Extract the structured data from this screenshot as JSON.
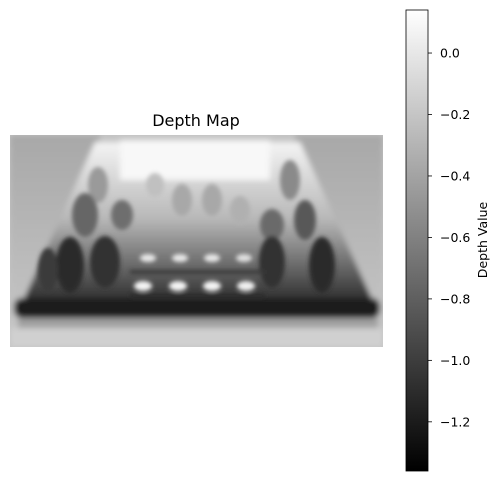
{
  "chart_data": {
    "type": "heatmap",
    "title": "Depth Map",
    "colormap": "gray",
    "axes_visible": false,
    "colorbar": {
      "label": "Depth Value",
      "range": [
        -1.36,
        0.14
      ],
      "ticks": [
        0.0,
        -0.2,
        -0.4,
        -0.6,
        -0.8,
        -1.0,
        -1.2
      ],
      "tick_labels": [
        "0.0",
        "−0.2",
        "−0.4",
        "−0.6",
        "−0.8",
        "−1.0",
        "−1.2"
      ]
    },
    "scene_description_values": {
      "background": -0.15,
      "far_wall": 0.05,
      "near_edge": -1.3,
      "objects_front": -1.1,
      "objects_back": -0.3
    }
  }
}
